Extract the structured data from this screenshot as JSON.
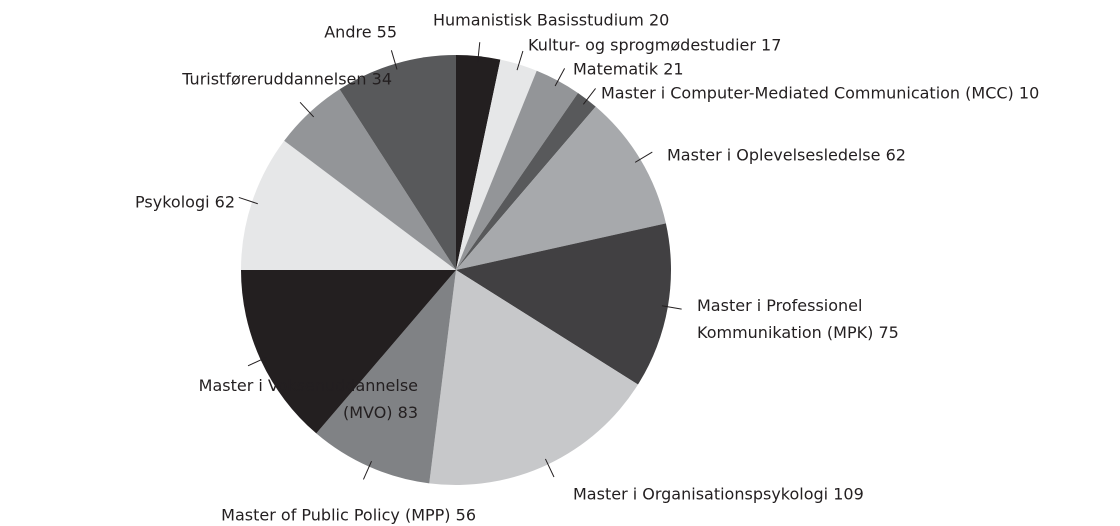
{
  "chart_data": {
    "type": "pie",
    "categories": [
      "Humanistisk Basisstudium",
      "Kultur- og sprogmødestudier",
      "Matematik",
      "Master i Computer-Mediated Communication (MCC)",
      "Master i Oplevelsesledelse",
      "Master i Professionel Kommunikation (MPK)",
      "Master i Organisationspsykologi",
      "Master of Public Policy (MPP)",
      "Master i Voksenuddannelse (MVO)",
      "Psykologi",
      "Turistføreruddannelsen",
      "Andre"
    ],
    "values": [
      20,
      17,
      21,
      10,
      62,
      75,
      109,
      56,
      83,
      62,
      34,
      55
    ],
    "colors": [
      "#231f20",
      "#e6e7e8",
      "#939598",
      "#58595b",
      "#a7a9ac",
      "#414042",
      "#c7c8ca",
      "#808285",
      "#231f20",
      "#e6e7e8",
      "#939598",
      "#58595b"
    ]
  }
}
